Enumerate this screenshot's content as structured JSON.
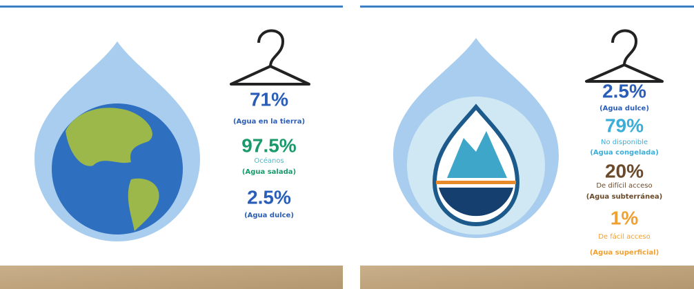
{
  "left": {
    "stats": [
      {
        "value": "71%",
        "label": "(Agua en la tierra)"
      },
      {
        "value": "97.5%",
        "sub": "Océanos",
        "label": "(Agua salada)"
      },
      {
        "value": "2.5%",
        "label": "(Agua dulce)"
      }
    ]
  },
  "right": {
    "stats": [
      {
        "value": "2.5%",
        "label": "(Agua dulce)"
      },
      {
        "value": "79%",
        "sub": "No disponible",
        "label": "(Agua congelada)"
      },
      {
        "value": "20%",
        "sub": "De difícil acceso",
        "label": "(Agua subterránea)"
      },
      {
        "value": "1%",
        "sub": "De fácil acceso",
        "label": "(Agua superficial)"
      }
    ]
  }
}
